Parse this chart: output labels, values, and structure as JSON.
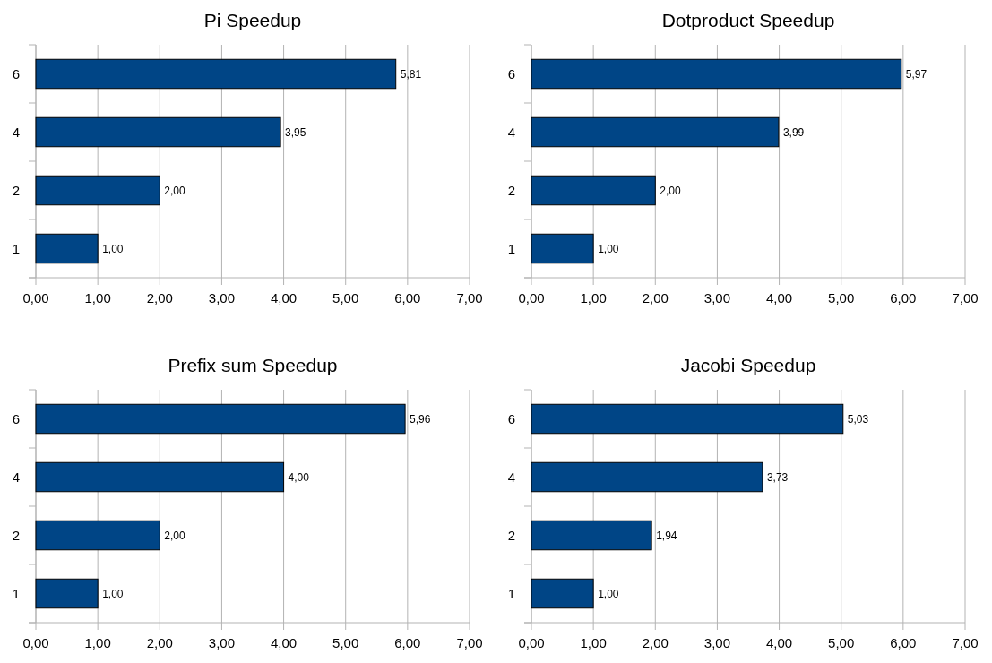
{
  "chart_data": [
    {
      "type": "bar",
      "orientation": "horizontal",
      "title": "Pi Speedup",
      "categories": [
        "6",
        "4",
        "2",
        "1"
      ],
      "values": [
        5.81,
        3.95,
        2.0,
        1.0
      ],
      "value_labels": [
        "5,81",
        "3,95",
        "2,00",
        "1,00"
      ],
      "color": "#004586",
      "xlim": [
        0,
        7
      ],
      "xticks": [
        {
          "value": 0,
          "label": "0,00"
        },
        {
          "value": 1,
          "label": "1,00"
        },
        {
          "value": 2,
          "label": "2,00"
        },
        {
          "value": 3,
          "label": "3,00"
        },
        {
          "value": 4,
          "label": "4,00"
        },
        {
          "value": 5,
          "label": "5,00"
        },
        {
          "value": 6,
          "label": "6,00"
        },
        {
          "value": 7,
          "label": "7,00"
        }
      ],
      "grid": "x"
    },
    {
      "type": "bar",
      "orientation": "horizontal",
      "title": "Dotproduct Speedup",
      "categories": [
        "6",
        "4",
        "2",
        "1"
      ],
      "values": [
        5.97,
        3.99,
        2.0,
        1.0
      ],
      "value_labels": [
        "5,97",
        "3,99",
        "2,00",
        "1,00"
      ],
      "color": "#004586",
      "xlim": [
        0,
        7
      ],
      "xticks": [
        {
          "value": 0,
          "label": "0,00"
        },
        {
          "value": 1,
          "label": "1,00"
        },
        {
          "value": 2,
          "label": "2,00"
        },
        {
          "value": 3,
          "label": "3,00"
        },
        {
          "value": 4,
          "label": "4,00"
        },
        {
          "value": 5,
          "label": "5,00"
        },
        {
          "value": 6,
          "label": "6,00"
        },
        {
          "value": 7,
          "label": "7,00"
        }
      ],
      "grid": "x"
    },
    {
      "type": "bar",
      "orientation": "horizontal",
      "title": "Prefix sum Speedup",
      "categories": [
        "6",
        "4",
        "2",
        "1"
      ],
      "values": [
        5.96,
        4.0,
        2.0,
        1.0
      ],
      "value_labels": [
        "5,96",
        "4,00",
        "2,00",
        "1,00"
      ],
      "color": "#004586",
      "xlim": [
        0,
        7
      ],
      "xticks": [
        {
          "value": 0,
          "label": "0,00"
        },
        {
          "value": 1,
          "label": "1,00"
        },
        {
          "value": 2,
          "label": "2,00"
        },
        {
          "value": 3,
          "label": "3,00"
        },
        {
          "value": 4,
          "label": "4,00"
        },
        {
          "value": 5,
          "label": "5,00"
        },
        {
          "value": 6,
          "label": "6,00"
        },
        {
          "value": 7,
          "label": "7,00"
        }
      ],
      "grid": "x"
    },
    {
      "type": "bar",
      "orientation": "horizontal",
      "title": "Jacobi Speedup",
      "categories": [
        "6",
        "4",
        "2",
        "1"
      ],
      "values": [
        5.03,
        3.73,
        1.94,
        1.0
      ],
      "value_labels": [
        "5,03",
        "3,73",
        "1,94",
        "1,00"
      ],
      "color": "#004586",
      "xlim": [
        0,
        7
      ],
      "xticks": [
        {
          "value": 0,
          "label": "0,00"
        },
        {
          "value": 1,
          "label": "1,00"
        },
        {
          "value": 2,
          "label": "2,00"
        },
        {
          "value": 3,
          "label": "3,00"
        },
        {
          "value": 4,
          "label": "4,00"
        },
        {
          "value": 5,
          "label": "5,00"
        },
        {
          "value": 6,
          "label": "6,00"
        },
        {
          "value": 7,
          "label": "7,00"
        }
      ],
      "grid": "x"
    }
  ]
}
